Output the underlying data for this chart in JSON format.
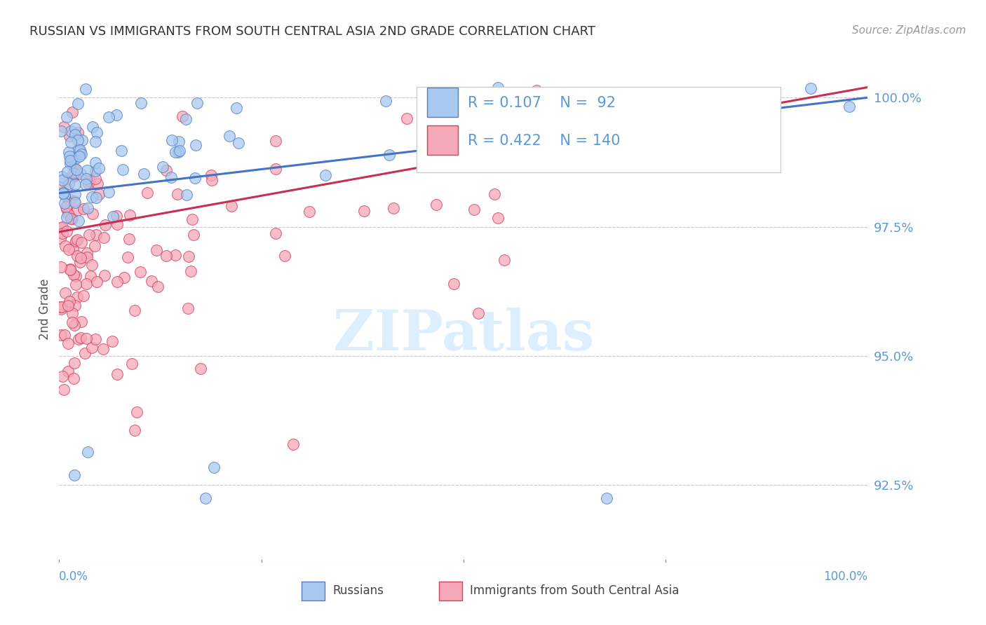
{
  "title": "RUSSIAN VS IMMIGRANTS FROM SOUTH CENTRAL ASIA 2ND GRADE CORRELATION CHART",
  "source": "Source: ZipAtlas.com",
  "ylabel": "2nd Grade",
  "xlim": [
    0.0,
    100.0
  ],
  "ylim": [
    91.0,
    100.8
  ],
  "yticks": [
    92.5,
    95.0,
    97.5,
    100.0
  ],
  "ytick_labels": [
    "92.5%",
    "95.0%",
    "97.5%",
    "100.0%"
  ],
  "blue_R": 0.107,
  "blue_N": 92,
  "pink_R": 0.422,
  "pink_N": 140,
  "blue_color": "#a8c8f0",
  "pink_color": "#f5a8b8",
  "blue_edge_color": "#5580c0",
  "pink_edge_color": "#d04060",
  "blue_line_color": "#4472c4",
  "pink_line_color": "#c83050",
  "title_color": "#333333",
  "axis_color": "#5b9bd5",
  "grid_color": "#c8c8c8",
  "watermark_color": "#ddeeff",
  "legend_label_blue": "Russians",
  "legend_label_pink": "Immigrants from South Central Asia",
  "blue_trendline_x": [
    0,
    100
  ],
  "blue_trendline_y": [
    98.15,
    100.0
  ],
  "pink_trendline_x": [
    0,
    100
  ],
  "pink_trendline_y": [
    97.4,
    100.2
  ]
}
